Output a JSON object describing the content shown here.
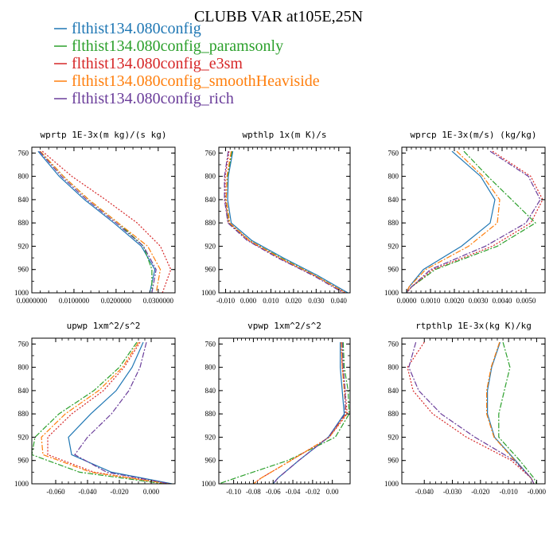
{
  "figure": {
    "title": "CLUBB VAR at105E,25N"
  },
  "legend": [
    {
      "name": "flthist134.080config",
      "color": "#1f77b4",
      "dash": "solid"
    },
    {
      "name": "flthist134.080config_paramsonly",
      "color": "#2ca02c",
      "dash": "dashdot"
    },
    {
      "name": "flthist134.080config_e3sm",
      "color": "#d62728",
      "dash": "dot"
    },
    {
      "name": "flthist134.080config_smoothHeaviside",
      "color": "#ff7f0e",
      "dash": "dashdot"
    },
    {
      "name": "flthist134.080config_rich",
      "color": "#6a3d9a",
      "dash": "dashdot"
    }
  ],
  "chart_data": [
    {
      "type": "line",
      "title": "wprtp  1E-3x(m kg)/(s kg)",
      "xlim": [
        0.0,
        0.034
      ],
      "ylim": [
        1000,
        750
      ],
      "y_axis_inverted": true,
      "xticks": [
        0.0,
        0.01,
        0.02,
        0.03
      ],
      "xtick_labels": [
        "0.0000000",
        "0.0100000",
        "0.0200000",
        "0.0300000"
      ],
      "yticks": [
        760,
        800,
        840,
        880,
        920,
        960,
        1000
      ],
      "y": [
        757,
        800,
        840,
        880,
        920,
        960,
        1000
      ],
      "series": [
        {
          "legend_index": 0,
          "x": [
            0.0015,
            0.0065,
            0.0125,
            0.0195,
            0.026,
            0.0292,
            0.028
          ]
        },
        {
          "legend_index": 1,
          "x": [
            0.002,
            0.0075,
            0.0135,
            0.0205,
            0.0265,
            0.0285,
            0.0285
          ]
        },
        {
          "legend_index": 2,
          "x": [
            0.0025,
            0.0095,
            0.0175,
            0.025,
            0.0305,
            0.033,
            0.031
          ]
        },
        {
          "legend_index": 3,
          "x": [
            0.002,
            0.0075,
            0.0135,
            0.0205,
            0.0275,
            0.0305,
            0.0295
          ]
        },
        {
          "legend_index": 4,
          "x": [
            0.0018,
            0.007,
            0.013,
            0.02,
            0.0265,
            0.0295,
            0.0285
          ]
        }
      ]
    },
    {
      "type": "line",
      "title": "wpthlp  1x(m K)/s",
      "xlim": [
        -0.013,
        0.045
      ],
      "ylim": [
        1000,
        750
      ],
      "y_axis_inverted": true,
      "xticks": [
        -0.01,
        0.0,
        0.01,
        0.02,
        0.03,
        0.04
      ],
      "xtick_labels": [
        "-0.010",
        "0.000",
        "0.010",
        "0.020",
        "0.030",
        "0.040"
      ],
      "yticks": [
        760,
        800,
        840,
        880,
        920,
        960,
        1000
      ],
      "y": [
        757,
        800,
        840,
        880,
        910,
        940,
        970,
        1000
      ],
      "series": [
        {
          "legend_index": 0,
          "x": [
            -0.0068,
            -0.0088,
            -0.0091,
            -0.0075,
            0.0015,
            0.0155,
            0.0305,
            0.044
          ]
        },
        {
          "legend_index": 1,
          "x": [
            -0.0072,
            -0.0092,
            -0.0098,
            -0.0085,
            0.0005,
            0.0145,
            0.0295,
            0.043
          ]
        },
        {
          "legend_index": 2,
          "x": [
            -0.0085,
            -0.0102,
            -0.0102,
            -0.0088,
            0.0,
            0.0135,
            0.029,
            0.043
          ]
        },
        {
          "legend_index": 3,
          "x": [
            -0.0075,
            -0.0094,
            -0.0097,
            -0.0082,
            0.0005,
            0.014,
            0.0293,
            0.043
          ]
        },
        {
          "legend_index": 4,
          "x": [
            -0.0088,
            -0.0105,
            -0.0105,
            -0.009,
            -0.0005,
            0.013,
            0.0285,
            0.042
          ]
        }
      ]
    },
    {
      "type": "line",
      "title": "wprcp  1E-3x(m/s) (kg/kg)",
      "xlim": [
        -0.0002,
        0.0058
      ],
      "ylim": [
        1000,
        750
      ],
      "y_axis_inverted": true,
      "xticks": [
        0.0,
        0.001,
        0.002,
        0.003,
        0.004,
        0.005
      ],
      "xtick_labels": [
        "0.0000",
        "0.0010",
        "0.0020",
        "0.0030",
        "0.0040",
        "0.0050"
      ],
      "yticks": [
        760,
        800,
        840,
        880,
        920,
        960,
        1000
      ],
      "y": [
        757,
        800,
        840,
        880,
        920,
        960,
        990,
        1000
      ],
      "series": [
        {
          "legend_index": 0,
          "x": [
            0.0019,
            0.0031,
            0.0037,
            0.0035,
            0.0023,
            0.0007,
            0.0001,
            0.0
          ]
        },
        {
          "legend_index": 1,
          "x": [
            0.0024,
            0.0034,
            0.0044,
            0.0054,
            0.0038,
            0.0012,
            0.0002,
            0.0
          ]
        },
        {
          "legend_index": 2,
          "x": [
            0.0036,
            0.0052,
            0.0057,
            0.0052,
            0.0036,
            0.0011,
            0.0002,
            0.0
          ]
        },
        {
          "legend_index": 3,
          "x": [
            0.0021,
            0.0032,
            0.0039,
            0.0038,
            0.0026,
            0.0008,
            0.0001,
            0.0
          ]
        },
        {
          "legend_index": 4,
          "x": [
            0.0035,
            0.0051,
            0.0056,
            0.005,
            0.0033,
            0.001,
            0.0002,
            0.0
          ]
        }
      ]
    },
    {
      "type": "line",
      "title": "upwp  1xm^2/s^2",
      "xlim": [
        -0.075,
        0.015
      ],
      "ylim": [
        1000,
        750
      ],
      "y_axis_inverted": true,
      "xticks": [
        -0.06,
        -0.04,
        -0.02,
        0.0
      ],
      "xtick_labels": [
        "-0.060",
        "-0.040",
        "-0.020",
        "0.000"
      ],
      "yticks": [
        760,
        800,
        840,
        880,
        920,
        960,
        1000
      ],
      "y": [
        757,
        800,
        840,
        880,
        920,
        950,
        980,
        1000
      ],
      "series": [
        {
          "legend_index": 0,
          "x": [
            -0.005,
            -0.012,
            -0.022,
            -0.038,
            -0.052,
            -0.05,
            -0.025,
            0.013
          ]
        },
        {
          "legend_index": 1,
          "x": [
            -0.009,
            -0.02,
            -0.036,
            -0.058,
            -0.073,
            -0.075,
            -0.045,
            0.008
          ]
        },
        {
          "legend_index": 2,
          "x": [
            -0.007,
            -0.017,
            -0.03,
            -0.05,
            -0.065,
            -0.065,
            -0.036,
            0.011
          ]
        },
        {
          "legend_index": 3,
          "x": [
            -0.008,
            -0.018,
            -0.033,
            -0.054,
            -0.069,
            -0.068,
            -0.038,
            0.011
          ]
        },
        {
          "legend_index": 4,
          "x": [
            -0.003,
            -0.007,
            -0.014,
            -0.025,
            -0.04,
            -0.048,
            -0.028,
            0.012
          ]
        }
      ]
    },
    {
      "type": "line",
      "title": "vpwp  1xm^2/s^2",
      "xlim": [
        -0.115,
        0.018
      ],
      "ylim": [
        1000,
        750
      ],
      "y_axis_inverted": true,
      "xticks": [
        -0.1,
        -0.08,
        -0.06,
        -0.04,
        -0.02,
        0.0
      ],
      "xtick_labels": [
        "-0.10",
        "-0.08",
        "-0.06",
        "-0.04",
        "-0.02",
        "0.00"
      ],
      "yticks": [
        760,
        800,
        840,
        880,
        920,
        960,
        1000
      ],
      "y": [
        757,
        800,
        840,
        880,
        920,
        960,
        990,
        1000
      ],
      "series": [
        {
          "legend_index": 0,
          "x": [
            0.008,
            0.008,
            0.01,
            0.012,
            -0.004,
            -0.034,
            -0.055,
            -0.06
          ]
        },
        {
          "legend_index": 1,
          "x": [
            0.011,
            0.012,
            0.016,
            0.017,
            0.003,
            -0.045,
            -0.098,
            -0.115
          ]
        },
        {
          "legend_index": 2,
          "x": [
            0.009,
            0.01,
            0.013,
            0.015,
            -0.003,
            -0.042,
            -0.072,
            -0.08
          ]
        },
        {
          "legend_index": 3,
          "x": [
            0.009,
            0.01,
            0.012,
            0.014,
            -0.003,
            -0.042,
            -0.072,
            -0.08
          ]
        },
        {
          "legend_index": 4,
          "x": [
            0.01,
            0.011,
            0.013,
            0.013,
            -0.004,
            -0.034,
            -0.055,
            -0.06
          ]
        }
      ]
    },
    {
      "type": "line",
      "title": "rtpthlp  1E-3x(kg K)/kg",
      "xlim": [
        -0.048,
        0.003
      ],
      "ylim": [
        1000,
        750
      ],
      "y_axis_inverted": true,
      "xticks": [
        -0.04,
        -0.03,
        -0.02,
        -0.01,
        0.0
      ],
      "xtick_labels": [
        "-0.040",
        "-0.030",
        "-0.020",
        "-0.010",
        "-0.000"
      ],
      "yticks": [
        760,
        800,
        840,
        880,
        920,
        960,
        1000
      ],
      "y": [
        757,
        800,
        840,
        880,
        920,
        960,
        990,
        1000
      ],
      "series": [
        {
          "legend_index": 0,
          "x": [
            -0.013,
            -0.016,
            -0.0175,
            -0.0175,
            -0.015,
            -0.0075,
            -0.002,
            -0.001
          ]
        },
        {
          "legend_index": 1,
          "x": [
            -0.012,
            -0.0095,
            -0.0115,
            -0.0135,
            -0.0135,
            -0.006,
            -0.001,
            0.0
          ]
        },
        {
          "legend_index": 2,
          "x": [
            -0.04,
            -0.046,
            -0.044,
            -0.037,
            -0.025,
            -0.009,
            -0.002,
            -0.001
          ]
        },
        {
          "legend_index": 3,
          "x": [
            -0.0132,
            -0.0162,
            -0.0178,
            -0.0178,
            -0.0152,
            -0.0078,
            -0.002,
            -0.001
          ]
        },
        {
          "legend_index": 4,
          "x": [
            -0.043,
            -0.0455,
            -0.042,
            -0.034,
            -0.022,
            -0.008,
            -0.002,
            -0.001
          ]
        }
      ]
    }
  ]
}
